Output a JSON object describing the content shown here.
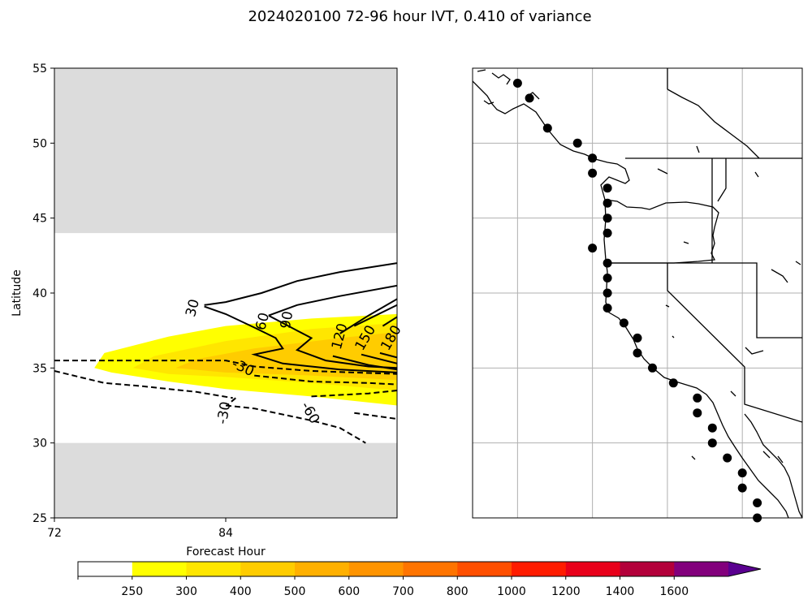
{
  "figure": {
    "title": "2024020100 72-96 hour IVT, 0.410 of variance"
  },
  "chart_data": [
    {
      "type": "contour",
      "panel": "left",
      "xlabel": "Forecast Hour",
      "ylabel": "Latitude",
      "xlim": [
        72,
        96
      ],
      "ylim": [
        25,
        55
      ],
      "xticks": [
        "72",
        "84"
      ],
      "yticks": [
        "25",
        "30",
        "35",
        "40",
        "45",
        "50",
        "55"
      ],
      "masked_lat_bands": [
        [
          25,
          30
        ],
        [
          44,
          55
        ]
      ],
      "mask_color": "#dcdcdc",
      "filled_ivt": [
        {
          "level": 250,
          "polygon": [
            [
              74.8,
              35.0
            ],
            [
              75.5,
              36.0
            ],
            [
              80,
              37.1
            ],
            [
              84,
              37.8
            ],
            [
              90,
              38.3
            ],
            [
              96,
              38.6
            ],
            [
              96,
              32.5
            ],
            [
              90,
              33.1
            ],
            [
              84,
              33.6
            ],
            [
              80,
              34.1
            ],
            [
              76,
              34.7
            ]
          ]
        },
        {
          "level": 300,
          "polygon": [
            [
              77.5,
              35.0
            ],
            [
              79,
              35.8
            ],
            [
              84,
              36.8
            ],
            [
              90,
              37.6
            ],
            [
              96,
              38.0
            ],
            [
              96,
              33.5
            ],
            [
              90,
              34.0
            ],
            [
              84,
              34.4
            ],
            [
              80,
              34.6
            ]
          ]
        },
        {
          "level": 400,
          "polygon": [
            [
              80.5,
              35.0
            ],
            [
              82,
              35.6
            ],
            [
              86,
              36.3
            ],
            [
              92,
              37.0
            ],
            [
              96,
              37.4
            ],
            [
              96,
              34.2
            ],
            [
              90,
              34.5
            ],
            [
              84,
              34.7
            ]
          ]
        }
      ],
      "contours": [
        {
          "value": 30,
          "label": "30",
          "style": "solid",
          "points": [
            [
              82.5,
              39.2
            ],
            [
              84,
              39.4
            ],
            [
              86.5,
              40.0
            ],
            [
              89,
              40.8
            ],
            [
              92,
              41.4
            ],
            [
              96,
              42.0
            ]
          ]
        },
        {
          "value": 60,
          "label": "60",
          "style": "solid",
          "points": [
            [
              82.5,
              39.1
            ],
            [
              84,
              38.6
            ],
            [
              86,
              37.7
            ],
            [
              87.5,
              37.0
            ],
            [
              88,
              36.3
            ],
            [
              86,
              35.9
            ],
            [
              88,
              35.3
            ],
            [
              90,
              35.1
            ],
            [
              92,
              34.9
            ],
            [
              96,
              34.7
            ]
          ]
        },
        {
          "value": 90,
          "label": "90",
          "style": "solid",
          "points": [
            [
              87,
              38.5
            ],
            [
              89,
              39.2
            ],
            [
              92,
              39.8
            ],
            [
              96,
              40.5
            ]
          ]
        },
        {
          "value": 90,
          "label": "90",
          "style": "solid",
          "points": [
            [
              87,
              38.5
            ],
            [
              89,
              37.5
            ],
            [
              90,
              37.0
            ],
            [
              89,
              36.2
            ],
            [
              91,
              35.5
            ],
            [
              94,
              35.1
            ],
            [
              96,
              35.0
            ]
          ]
        },
        {
          "value": 120,
          "label": "120",
          "style": "solid",
          "points": [
            [
              92,
              37.3
            ],
            [
              94,
              38.5
            ],
            [
              96,
              39.6
            ]
          ]
        },
        {
          "value": 120,
          "label": "120",
          "style": "solid",
          "points": [
            [
              91.5,
              35.8
            ],
            [
              94,
              35.2
            ],
            [
              96,
              34.9
            ]
          ]
        },
        {
          "value": 150,
          "label": "150",
          "style": "solid",
          "points": [
            [
              93,
              37.8
            ],
            [
              94.5,
              38.5
            ],
            [
              96,
              39.2
            ]
          ]
        },
        {
          "value": 150,
          "label": "150",
          "style": "solid",
          "points": [
            [
              93.5,
              35.9
            ],
            [
              96,
              35.3
            ]
          ]
        },
        {
          "value": 180,
          "label": "180",
          "style": "solid",
          "points": [
            [
              95,
              37.8
            ],
            [
              96,
              38.4
            ]
          ]
        },
        {
          "value": 180,
          "label": "180",
          "style": "solid",
          "points": [
            [
              94.8,
              36.0
            ],
            [
              96,
              35.7
            ]
          ]
        },
        {
          "value": -30,
          "label": "-30",
          "style": "dashed",
          "points": [
            [
              72,
              35.5
            ],
            [
              84,
              35.5
            ],
            [
              86,
              35.1
            ],
            [
              90,
              34.8
            ],
            [
              96,
              34.6
            ]
          ]
        },
        {
          "value": -30,
          "label": "-30",
          "style": "dashed",
          "points": [
            [
              72,
              34.8
            ],
            [
              75.5,
              34.0
            ],
            [
              78,
              33.8
            ],
            [
              82,
              33.4
            ],
            [
              84.5,
              33.0
            ]
          ]
        },
        {
          "value": -30,
          "label": "-30",
          "style": "dashed",
          "points": [
            [
              84.7,
              33.0
            ],
            [
              84.2,
              32.6
            ]
          ]
        },
        {
          "value": -60,
          "label": "-60",
          "style": "dashed",
          "points": [
            [
              84,
              32.5
            ],
            [
              86,
              32.3
            ],
            [
              90,
              31.5
            ],
            [
              92,
              31.0
            ],
            [
              93.8,
              30.0
            ]
          ]
        },
        {
          "value": -60,
          "label": "-60",
          "style": "dashed",
          "points": [
            [
              86,
              34.5
            ],
            [
              90,
              34.1
            ],
            [
              94,
              34.0
            ],
            [
              96,
              33.9
            ]
          ]
        },
        {
          "value": -60,
          "label": "-60",
          "style": "dashed",
          "points": [
            [
              90,
              33.1
            ],
            [
              94,
              33.3
            ],
            [
              96,
              33.5
            ]
          ]
        },
        {
          "value": -60,
          "label": "-60",
          "style": "dashed",
          "points": [
            [
              93,
              32.0
            ],
            [
              96,
              31.6
            ]
          ]
        }
      ],
      "contour_labels": [
        {
          "text": "30",
          "x": 81.7,
          "y": 39.0,
          "rotate": -75
        },
        {
          "text": "60",
          "x": 86.6,
          "y": 38.1,
          "rotate": -75
        },
        {
          "text": "90",
          "x": 88.3,
          "y": 38.2,
          "rotate": -80
        },
        {
          "text": "120",
          "x": 92.0,
          "y": 37.1,
          "rotate": -75
        },
        {
          "text": "150",
          "x": 93.8,
          "y": 37.0,
          "rotate": -60
        },
        {
          "text": "180",
          "x": 95.6,
          "y": 37.0,
          "rotate": -60
        },
        {
          "text": "-30",
          "x": 85.2,
          "y": 35.0,
          "rotate": 25
        },
        {
          "text": "-30",
          "x": 83.9,
          "y": 32.0,
          "rotate": -80
        },
        {
          "text": "-60",
          "x": 89.9,
          "y": 32.0,
          "rotate": 60
        }
      ]
    },
    {
      "type": "map",
      "panel": "right",
      "region": "US West Coast and Baja California",
      "lon_range": [
        -135,
        -113
      ],
      "lat_range": [
        25,
        55
      ],
      "grid": true,
      "grid_lons": [
        -132,
        -127,
        -122,
        -117
      ],
      "grid_lats": [
        30,
        35,
        40,
        45,
        50
      ],
      "coast_points": [
        [
          -132.0,
          54.0
        ],
        [
          -131.2,
          53.0
        ],
        [
          -130.0,
          51.0
        ],
        [
          -128.0,
          50.0
        ],
        [
          -127.0,
          49.0
        ],
        [
          -127.0,
          48.0
        ],
        [
          -126.0,
          47.0
        ],
        [
          -126.0,
          46.0
        ],
        [
          -126.0,
          45.0
        ],
        [
          -126.0,
          44.0
        ],
        [
          -127.0,
          43.0
        ],
        [
          -126.0,
          42.0
        ],
        [
          -126.0,
          41.0
        ],
        [
          -126.0,
          40.0
        ],
        [
          -126.0,
          39.0
        ],
        [
          -124.9,
          38.0
        ],
        [
          -124.0,
          37.0
        ],
        [
          -124.0,
          36.0
        ],
        [
          -123.0,
          35.0
        ],
        [
          -121.6,
          34.0
        ],
        [
          -120.0,
          33.0
        ],
        [
          -120.0,
          32.0
        ],
        [
          -119.0,
          31.0
        ],
        [
          -119.0,
          30.0
        ],
        [
          -118.0,
          29.0
        ],
        [
          -117.0,
          28.0
        ],
        [
          -117.0,
          27.0
        ],
        [
          -116.0,
          26.0
        ],
        [
          -116.0,
          25.0
        ]
      ]
    }
  ],
  "colorbar": {
    "levels": [
      "250",
      "300",
      "400",
      "500",
      "600",
      "700",
      "800",
      "1000",
      "1200",
      "1400",
      "1600"
    ],
    "colors": [
      "#ffffff",
      "#ffff00",
      "#ffe600",
      "#ffcc00",
      "#ffb000",
      "#ff9400",
      "#ff7400",
      "#ff4f00",
      "#ff1c00",
      "#e8001a",
      "#b3003a",
      "#82007c",
      "#5a0090"
    ]
  }
}
